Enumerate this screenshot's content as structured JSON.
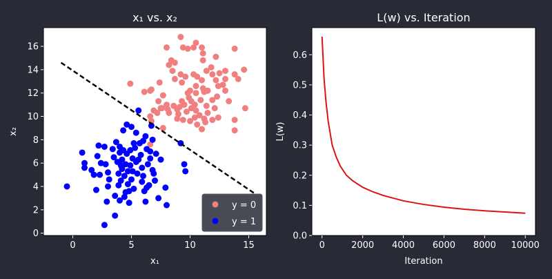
{
  "chart_data": [
    {
      "type": "scatter",
      "title": "x₁ vs. x₂",
      "xlabel": "x₁",
      "ylabel": "x₂",
      "xlim": [
        -2.5,
        16.5
      ],
      "ylim": [
        -0.2,
        17.6
      ],
      "xticks": [
        0,
        5,
        10,
        15
      ],
      "yticks": [
        0,
        2,
        4,
        6,
        8,
        10,
        12,
        14,
        16
      ],
      "legend_position": "bottom-right",
      "series": [
        {
          "name": "y = 0",
          "color": "#f08080",
          "points": [
            [
              8.0,
              15.9
            ],
            [
              9.4,
              15.9
            ],
            [
              9.8,
              15.8
            ],
            [
              10.3,
              15.9
            ],
            [
              10.5,
              16.3
            ],
            [
              11.0,
              15.9
            ],
            [
              11.1,
              15.4
            ],
            [
              9.2,
              16.8
            ],
            [
              13.8,
              15.8
            ],
            [
              8.2,
              14.4
            ],
            [
              8.4,
              14.8
            ],
            [
              8.7,
              14.6
            ],
            [
              11.1,
              14.8
            ],
            [
              11.8,
              14.2
            ],
            [
              12.2,
              15.1
            ],
            [
              11.4,
              13.9
            ],
            [
              12.5,
              13.7
            ],
            [
              13.0,
              13.9
            ],
            [
              13.8,
              13.6
            ],
            [
              14.6,
              14.0
            ],
            [
              8.5,
              13.9
            ],
            [
              9.2,
              13.6
            ],
            [
              9.6,
              13.4
            ],
            [
              10.3,
              13.6
            ],
            [
              10.6,
              13.4
            ],
            [
              11.0,
              13.1
            ],
            [
              11.9,
              13.6
            ],
            [
              12.2,
              13.1
            ],
            [
              13.0,
              13.2
            ],
            [
              14.1,
              13.2
            ],
            [
              12.8,
              12.7
            ],
            [
              4.9,
              12.8
            ],
            [
              6.1,
              12.1
            ],
            [
              6.6,
              12.2
            ],
            [
              6.7,
              12.3
            ],
            [
              7.4,
              12.9
            ],
            [
              8.7,
              13.2
            ],
            [
              9.3,
              12.9
            ],
            [
              10.5,
              12.6
            ],
            [
              11.1,
              12.4
            ],
            [
              11.5,
              12.2
            ],
            [
              12.4,
              12.6
            ],
            [
              13.0,
              12.2
            ],
            [
              6.9,
              10.5
            ],
            [
              7.3,
              11.3
            ],
            [
              7.6,
              10.7
            ],
            [
              8.0,
              11.0
            ],
            [
              8.1,
              10.6
            ],
            [
              8.6,
              10.9
            ],
            [
              8.9,
              10.6
            ],
            [
              9.1,
              10.8
            ],
            [
              9.3,
              11.3
            ],
            [
              9.5,
              11.0
            ],
            [
              9.9,
              11.6
            ],
            [
              10.1,
              11.3
            ],
            [
              10.4,
              11.0
            ],
            [
              10.5,
              10.5
            ],
            [
              10.9,
              11.4
            ],
            [
              11.4,
              10.9
            ],
            [
              11.9,
              11.4
            ],
            [
              12.1,
              10.7
            ],
            [
              12.3,
              11.7
            ],
            [
              13.3,
              11.3
            ],
            [
              14.7,
              10.7
            ],
            [
              7.7,
              11.8
            ],
            [
              9.8,
              12.0
            ],
            [
              10.0,
              12.2
            ],
            [
              10.5,
              12.0
            ],
            [
              11.2,
              12.1
            ],
            [
              6.6,
              10.0
            ],
            [
              7.2,
              10.3
            ],
            [
              7.5,
              10.7
            ],
            [
              8.2,
              10.3
            ],
            [
              9.0,
              10.2
            ],
            [
              9.7,
              10.4
            ],
            [
              10.1,
              10.7
            ],
            [
              10.4,
              9.9
            ],
            [
              10.8,
              10.1
            ],
            [
              11.2,
              9.8
            ],
            [
              11.5,
              10.3
            ],
            [
              11.9,
              9.7
            ],
            [
              12.4,
              9.9
            ],
            [
              6.7,
              9.6
            ],
            [
              8.9,
              9.8
            ],
            [
              9.4,
              9.7
            ],
            [
              10.0,
              9.6
            ],
            [
              10.6,
              9.3
            ],
            [
              11.0,
              8.9
            ],
            [
              11.3,
              9.5
            ],
            [
              13.8,
              9.7
            ],
            [
              13.8,
              8.8
            ],
            [
              7.7,
              9.0
            ],
            [
              6.6,
              7.6
            ]
          ]
        },
        {
          "name": "y = 1",
          "color": "#0000ff",
          "points": [
            [
              -0.5,
              4.0
            ],
            [
              0.8,
              6.9
            ],
            [
              1.0,
              5.6
            ],
            [
              1.0,
              6.0
            ],
            [
              1.6,
              5.4
            ],
            [
              1.8,
              5.0
            ],
            [
              2.0,
              3.7
            ],
            [
              2.1,
              6.6
            ],
            [
              2.2,
              7.5
            ],
            [
              2.3,
              5.0
            ],
            [
              2.7,
              7.4
            ],
            [
              2.8,
              5.9
            ],
            [
              2.7,
              0.7
            ],
            [
              2.9,
              2.7
            ],
            [
              3.0,
              4.0
            ],
            [
              3.1,
              4.6
            ],
            [
              3.0,
              5.2
            ],
            [
              3.4,
              7.2
            ],
            [
              3.6,
              3.2
            ],
            [
              3.6,
              1.5
            ],
            [
              3.7,
              7.8
            ],
            [
              3.8,
              6.1
            ],
            [
              3.9,
              5.1
            ],
            [
              3.9,
              4.1
            ],
            [
              4.0,
              2.8
            ],
            [
              4.0,
              6.9
            ],
            [
              4.1,
              4.5
            ],
            [
              4.2,
              5.5
            ],
            [
              4.2,
              6.3
            ],
            [
              4.3,
              7.1
            ],
            [
              4.3,
              8.8
            ],
            [
              4.4,
              3.1
            ],
            [
              4.4,
              4.9
            ],
            [
              4.5,
              5.9
            ],
            [
              4.6,
              6.8
            ],
            [
              4.6,
              9.3
            ],
            [
              4.7,
              5.3
            ],
            [
              4.7,
              4.2
            ],
            [
              4.8,
              2.6
            ],
            [
              4.8,
              3.6
            ],
            [
              4.9,
              5.8
            ],
            [
              4.9,
              7.1
            ],
            [
              5.0,
              4.6
            ],
            [
              5.1,
              6.4
            ],
            [
              5.1,
              5.3
            ],
            [
              5.2,
              3.8
            ],
            [
              5.3,
              7.3
            ],
            [
              5.4,
              8.6
            ],
            [
              5.4,
              6.1
            ],
            [
              5.5,
              5.1
            ],
            [
              5.6,
              10.5
            ],
            [
              5.7,
              7.7
            ],
            [
              5.8,
              6.7
            ],
            [
              5.9,
              5.6
            ],
            [
              6.0,
              4.9
            ],
            [
              6.1,
              3.6
            ],
            [
              6.2,
              2.7
            ],
            [
              6.2,
              8.3
            ],
            [
              6.3,
              7.2
            ],
            [
              6.4,
              5.9
            ],
            [
              6.5,
              4.1
            ],
            [
              6.6,
              6.4
            ],
            [
              6.8,
              8.0
            ],
            [
              6.9,
              5.1
            ],
            [
              7.0,
              4.5
            ],
            [
              7.1,
              6.8
            ],
            [
              7.3,
              3.0
            ],
            [
              7.5,
              6.3
            ],
            [
              7.9,
              3.9
            ],
            [
              8.0,
              2.4
            ],
            [
              9.2,
              7.7
            ],
            [
              9.5,
              5.9
            ],
            [
              9.6,
              5.3
            ],
            [
              5.0,
              9.1
            ],
            [
              6.7,
              9.2
            ],
            [
              4.1,
              5.8
            ],
            [
              3.5,
              6.5
            ],
            [
              5.6,
              6.3
            ],
            [
              6.0,
              7.9
            ],
            [
              6.8,
              5.4
            ],
            [
              4.5,
              3.5
            ],
            [
              5.9,
              4.4
            ],
            [
              2.4,
              6.0
            ],
            [
              6.3,
              3.9
            ],
            [
              4.0,
              7.4
            ],
            [
              5.2,
              7.7
            ],
            [
              6.6,
              7.0
            ]
          ]
        },
        {
          "name": "decision boundary",
          "color": "#000000",
          "style": "dashed",
          "line": [
            [
              -1.0,
              14.6
            ],
            [
              15.5,
              3.4
            ]
          ]
        }
      ]
    },
    {
      "type": "line",
      "title": "L(w) vs. Iteration",
      "xlabel": "Iteration",
      "ylabel": "L(w)",
      "xlim": [
        -500,
        10500
      ],
      "ylim": [
        0.0,
        0.69
      ],
      "xticks": [
        0,
        2000,
        4000,
        6000,
        8000,
        10000
      ],
      "yticks": [
        0.0,
        0.1,
        0.2,
        0.3,
        0.4,
        0.5,
        0.6
      ],
      "series": [
        {
          "color": "#dd1111",
          "x": [
            0,
            100,
            200,
            300,
            400,
            500,
            700,
            900,
            1200,
            1500,
            2000,
            2500,
            3000,
            4000,
            5000,
            6000,
            7000,
            8000,
            9000,
            10000
          ],
          "y": [
            0.66,
            0.52,
            0.44,
            0.38,
            0.34,
            0.3,
            0.26,
            0.23,
            0.2,
            0.182,
            0.16,
            0.145,
            0.133,
            0.115,
            0.103,
            0.094,
            0.087,
            0.082,
            0.078,
            0.074
          ]
        }
      ]
    }
  ]
}
